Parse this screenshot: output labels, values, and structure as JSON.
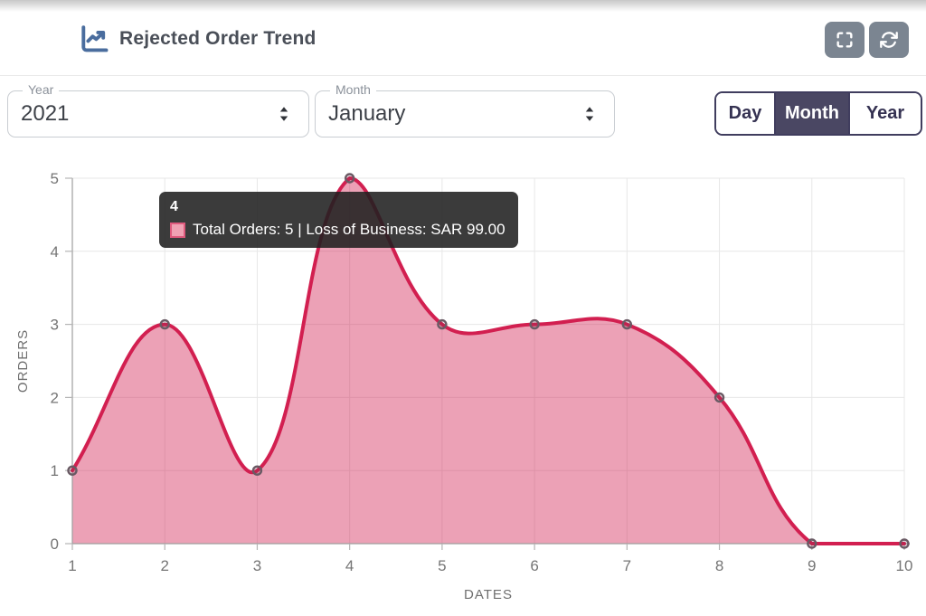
{
  "header": {
    "title": "Rejected Order Trend",
    "icons": {
      "title_icon": "trend-chart-icon",
      "fullscreen": "fullscreen-expand-icon",
      "refresh": "refresh-icon"
    }
  },
  "filters": {
    "year": {
      "label": "Year",
      "value": "2021"
    },
    "month": {
      "label": "Month",
      "value": "January"
    },
    "view_toggle": {
      "options": [
        "Day",
        "Month",
        "Year"
      ],
      "selected": "Month"
    }
  },
  "tooltip": {
    "title": "4",
    "text": "Total Orders: 5 | Loss of Business: SAR 99.00"
  },
  "chart_data": {
    "type": "area",
    "x": [
      1,
      2,
      3,
      4,
      5,
      6,
      7,
      8,
      9,
      10
    ],
    "series": [
      {
        "name": "Total Orders",
        "values": [
          1,
          3,
          1,
          5,
          3,
          3,
          3,
          2,
          0,
          0
        ]
      }
    ],
    "title": "",
    "xlabel": "DATES",
    "ylabel": "ORDERS",
    "xlim": [
      1,
      10
    ],
    "ylim": [
      0,
      5
    ],
    "yticks": [
      0,
      1,
      2,
      3,
      4,
      5
    ],
    "grid": true,
    "legend": false,
    "tension": 0.4,
    "line_color": "#d21f50",
    "fill_color": "rgba(210,31,80,0.42)",
    "point_border_color": "#6a5a64",
    "point_fill_color": "rgba(90,70,80,0.15)"
  },
  "colors": {
    "header_icon_blue": "#4a6d9e",
    "icon_button_bg": "#7b8591",
    "toggle_selected_bg": "#4a4763",
    "toggle_border": "#403d5e",
    "grid_line": "#e7e7e7",
    "axis_line": "#9e9e9e",
    "tick_color": "#b5b5b5",
    "tick_text": "#757575",
    "axis_title_text": "#6f6f6f",
    "tooltip_bg": "rgba(32,32,32,0.88)",
    "tooltip_swatch_bg": "#f0a1b3"
  }
}
